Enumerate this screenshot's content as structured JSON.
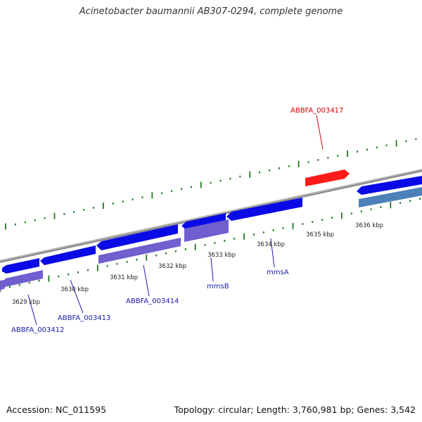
{
  "title": "Acinetobacter baumannii AB307-0294, complete genome",
  "footer": {
    "accession": "Accession: NC_011595",
    "summary": "Topology: circular; Length: 3,760,981 bp; Genes: 3,542"
  },
  "colors": {
    "forward_gene": "#0a0ae6",
    "reverse_cds": "#6f5fcf",
    "reverse_other": "#4c80b8",
    "highlight_gene": "#ff1a1a",
    "backbone": "#8a8a8a",
    "ticks": "#1f7a1f",
    "label_blue": "#1a1aa8",
    "label_red": "#cc0000"
  },
  "scale_ticks": [
    {
      "label": "3629 kbp"
    },
    {
      "label": "3630 kbp"
    },
    {
      "label": "3631 kbp"
    },
    {
      "label": "3632 kbp"
    },
    {
      "label": "3633 kbp"
    },
    {
      "label": "3634 kbp"
    },
    {
      "label": "3635 kbp"
    },
    {
      "label": "3636 kbp"
    }
  ],
  "gene_labels": [
    {
      "name": "ABBFA_003417",
      "strand": "forward",
      "color": "red"
    },
    {
      "name": "ABBFA_003412",
      "strand": "reverse",
      "color": "blue"
    },
    {
      "name": "ABBFA_003413",
      "strand": "reverse",
      "color": "blue"
    },
    {
      "name": "ABBFA_003414",
      "strand": "reverse",
      "color": "blue"
    },
    {
      "name": "mmsB",
      "strand": "reverse",
      "color": "blue"
    },
    {
      "name": "mmsA",
      "strand": "reverse",
      "color": "blue"
    }
  ]
}
